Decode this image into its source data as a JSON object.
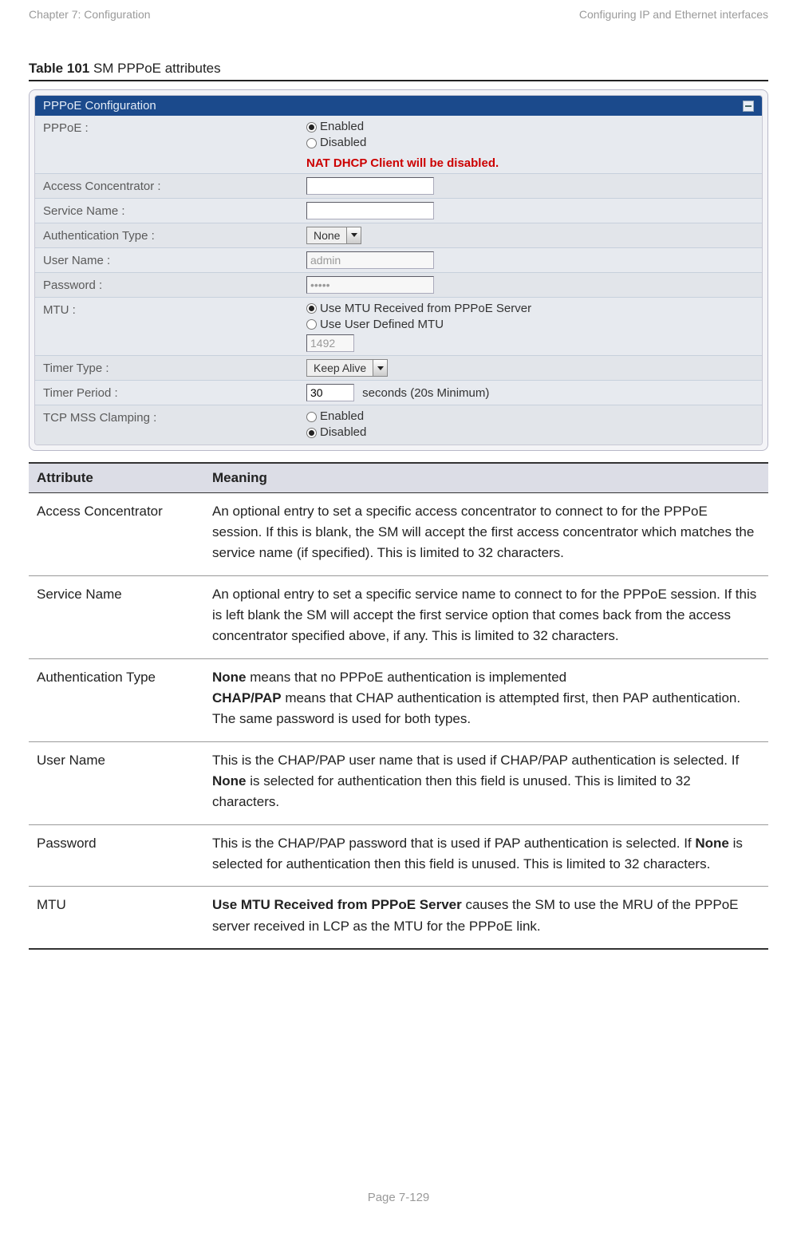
{
  "header": {
    "left": "Chapter 7:  Configuration",
    "right": "Configuring IP and Ethernet interfaces"
  },
  "footer": {
    "text": "Page 7-129"
  },
  "caption": {
    "prefix": "Table 101",
    "rest": " SM PPPoE attributes"
  },
  "colors": {
    "titlebar_bg": "#1b4a8c",
    "titlebar_text": "#e4ecf7",
    "warn_text": "#cc0000",
    "table_header_bg": "#dcdde6",
    "muted_text": "#9a9a9a"
  },
  "form": {
    "panel_title": "PPPoE Configuration",
    "pppoe": {
      "label": "PPPoE :",
      "opt_enabled": "Enabled",
      "opt_disabled": "Disabled",
      "selected": "Enabled",
      "warning": "NAT DHCP Client will be disabled."
    },
    "access_concentrator": {
      "label": "Access Concentrator :",
      "value": ""
    },
    "service_name": {
      "label": "Service Name :",
      "value": ""
    },
    "auth_type": {
      "label": "Authentication Type :",
      "value": "None"
    },
    "user_name": {
      "label": "User Name :",
      "value": "admin",
      "disabled": true
    },
    "password": {
      "label": "Password :",
      "value": "•••••",
      "disabled": true
    },
    "mtu": {
      "label": "MTU :",
      "opt_server": "Use MTU Received from PPPoE Server",
      "opt_user": "Use User Defined MTU",
      "selected": "server",
      "user_value": "1492"
    },
    "timer_type": {
      "label": "Timer Type :",
      "value": "Keep Alive"
    },
    "timer_period": {
      "label": "Timer Period :",
      "value": "30",
      "suffix": "seconds (20s Minimum)"
    },
    "tcp_mss": {
      "label": "TCP MSS Clamping :",
      "opt_enabled": "Enabled",
      "opt_disabled": "Disabled",
      "selected": "Disabled"
    }
  },
  "table": {
    "col1": "Attribute",
    "col2": "Meaning",
    "rows": [
      {
        "attr": "Access Concentrator",
        "meaning_html": "An optional entry to set a specific access concentrator to connect to for the PPPoE session. If this is blank, the SM will accept the first access concentrator which matches the service name (if specified). This is limited to 32 characters."
      },
      {
        "attr": "Service Name",
        "meaning_html": "An optional entry to set a specific service name to connect to for the PPPoE session. If this is left blank the SM will accept the first service option that comes back from the access concentrator specified above, if any. This is limited to 32 characters."
      },
      {
        "attr": "Authentication Type",
        "meaning_html": "<span class=\"b\">None</span> means that no PPPoE authentication is implemented<br><span class=\"b\">CHAP/PAP</span> means that CHAP authentication is attempted first, then PAP authentication. The same password is used for both types."
      },
      {
        "attr": "User Name",
        "meaning_html": "This is the CHAP/PAP user name that is used if CHAP/PAP authentication is selected. If <span class=\"b\">None</span> is selected for authentication then this field is unused. This is limited to 32 characters."
      },
      {
        "attr": "Password",
        "meaning_html": "This is the CHAP/PAP password that is used if PAP authentication is selected. If <span class=\"b\">None</span> is selected for authentication then this field is unused. This is limited to 32 characters."
      },
      {
        "attr": "MTU",
        "meaning_html": "<span class=\"b\">Use MTU Received from PPPoE Server</span> causes the SM to use the MRU of the PPPoE server received in LCP as the MTU for the PPPoE link."
      }
    ]
  }
}
